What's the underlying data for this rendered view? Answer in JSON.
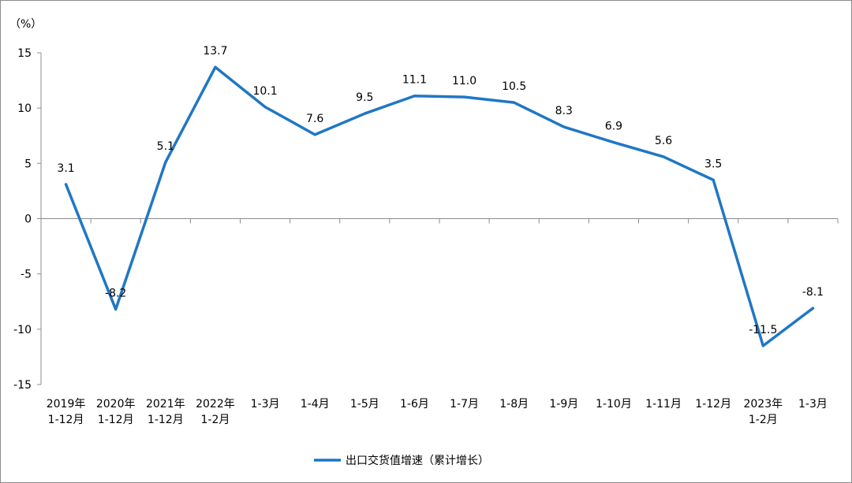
{
  "chart_data": {
    "type": "line",
    "unit_label": "（%）",
    "categories": [
      [
        "2019年",
        "1-12月"
      ],
      [
        "2020年",
        "1-12月"
      ],
      [
        "2021年",
        "1-12月"
      ],
      [
        "2022年",
        "1-2月"
      ],
      [
        "1-3月"
      ],
      [
        "1-4月"
      ],
      [
        "1-5月"
      ],
      [
        "1-6月"
      ],
      [
        "1-7月"
      ],
      [
        "1-8月"
      ],
      [
        "1-9月"
      ],
      [
        "1-10月"
      ],
      [
        "1-11月"
      ],
      [
        "1-12月"
      ],
      [
        "2023年",
        "1-2月"
      ],
      [
        "1-3月"
      ]
    ],
    "series": [
      {
        "name": "出口交货值增速（累计增长）",
        "color": "#1f77c4",
        "values": [
          3.1,
          -8.2,
          5.1,
          13.7,
          10.1,
          7.6,
          9.5,
          11.1,
          11.0,
          10.5,
          8.3,
          6.9,
          5.6,
          3.5,
          -11.5,
          -8.1
        ],
        "labels": [
          "3.1",
          "-8.2",
          "5.1",
          "13.7",
          "10.1",
          "7.6",
          "9.5",
          "11.1",
          "11.0",
          "10.5",
          "8.3",
          "6.9",
          "5.6",
          "3.5",
          "-11.5",
          "-8.1"
        ]
      }
    ],
    "yticks": [
      15,
      10,
      5,
      0,
      -5,
      -10,
      -15
    ],
    "ylim": [
      -15,
      15
    ],
    "grid": false,
    "legend_position": "bottom"
  }
}
